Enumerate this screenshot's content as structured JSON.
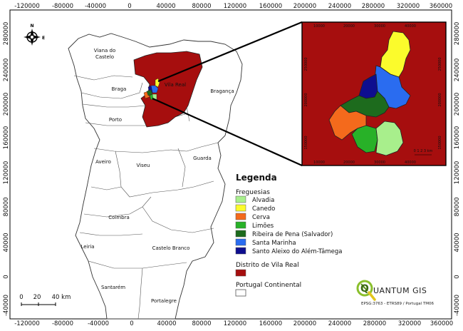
{
  "map": {
    "x_ticks": [
      "-120000",
      "-80000",
      "-40000",
      "0",
      "40000",
      "80000",
      "120000",
      "160000",
      "200000",
      "240000",
      "280000",
      "320000",
      "360000"
    ],
    "y_ticks_left": [
      "280000",
      "240000",
      "200000",
      "160000",
      "120000",
      "80000",
      "40000",
      "0",
      "-40000"
    ],
    "y_ticks_right": [
      "280000",
      "240000",
      "200000",
      "160000",
      "120000",
      "80000",
      "40000",
      "0",
      "-40000"
    ],
    "north_letter": "N",
    "east_letter": "E",
    "regions": {
      "viana": [
        "Viana do",
        "Castelo"
      ],
      "braga": "Braga",
      "vila_real": "Vila Real",
      "braganca": "Bragança",
      "porto": "Porto",
      "aveiro": "Aveiro",
      "viseu": "Viseu",
      "guarda": "Guarda",
      "coimbra": "Coimbra",
      "leiria": "Leiria",
      "castelo_branco": "Castelo Branco",
      "santarem": "Santarém",
      "portalegre": "Portalegre"
    },
    "scalebar": [
      "0",
      "20",
      "40 km"
    ],
    "colors": {
      "distrito": "#a60e0e",
      "alvadia": "#a8ef8c",
      "canedo": "#fbfb2c",
      "cerva": "#f46a1c",
      "limoes": "#28b128",
      "ribeira": "#1d6b1d",
      "santa_marinha": "#2a6cf0",
      "santo_aleixo": "#0e0e8f"
    }
  },
  "inset": {
    "x_ticks": [
      "10000",
      "20000",
      "30000",
      "40000"
    ],
    "y_ticks": [
      "250000",
      "200000",
      "150000"
    ],
    "scale_label": "0 1 2 3 km"
  },
  "legend": {
    "title": "Legenda",
    "freguesias_title": "Freguesias",
    "items": [
      {
        "label": "Alvadia",
        "color": "#a8ef8c"
      },
      {
        "label": "Canedo",
        "color": "#fbfb2c"
      },
      {
        "label": "Cerva",
        "color": "#f46a1c"
      },
      {
        "label": "Limões",
        "color": "#28b128"
      },
      {
        "label": "Ribeira de Pena (Salvador)",
        "color": "#1d6b1d"
      },
      {
        "label": "Santa Marinha",
        "color": "#2a6cf0"
      },
      {
        "label": "Santo Aleixo do Além-Tâmega",
        "color": "#0e0e8f"
      }
    ],
    "distrito_title": "Distrito de Vila Real",
    "distrito_color": "#a60e0e",
    "portugal_title": "Portugal Continental",
    "portugal_color": "#ffffff"
  },
  "branding": {
    "logo_text": "UANTUM GIS",
    "logo_letter": "Q",
    "epsg": "EPSG:3763 - ETRS89 / Portugal TM06"
  }
}
